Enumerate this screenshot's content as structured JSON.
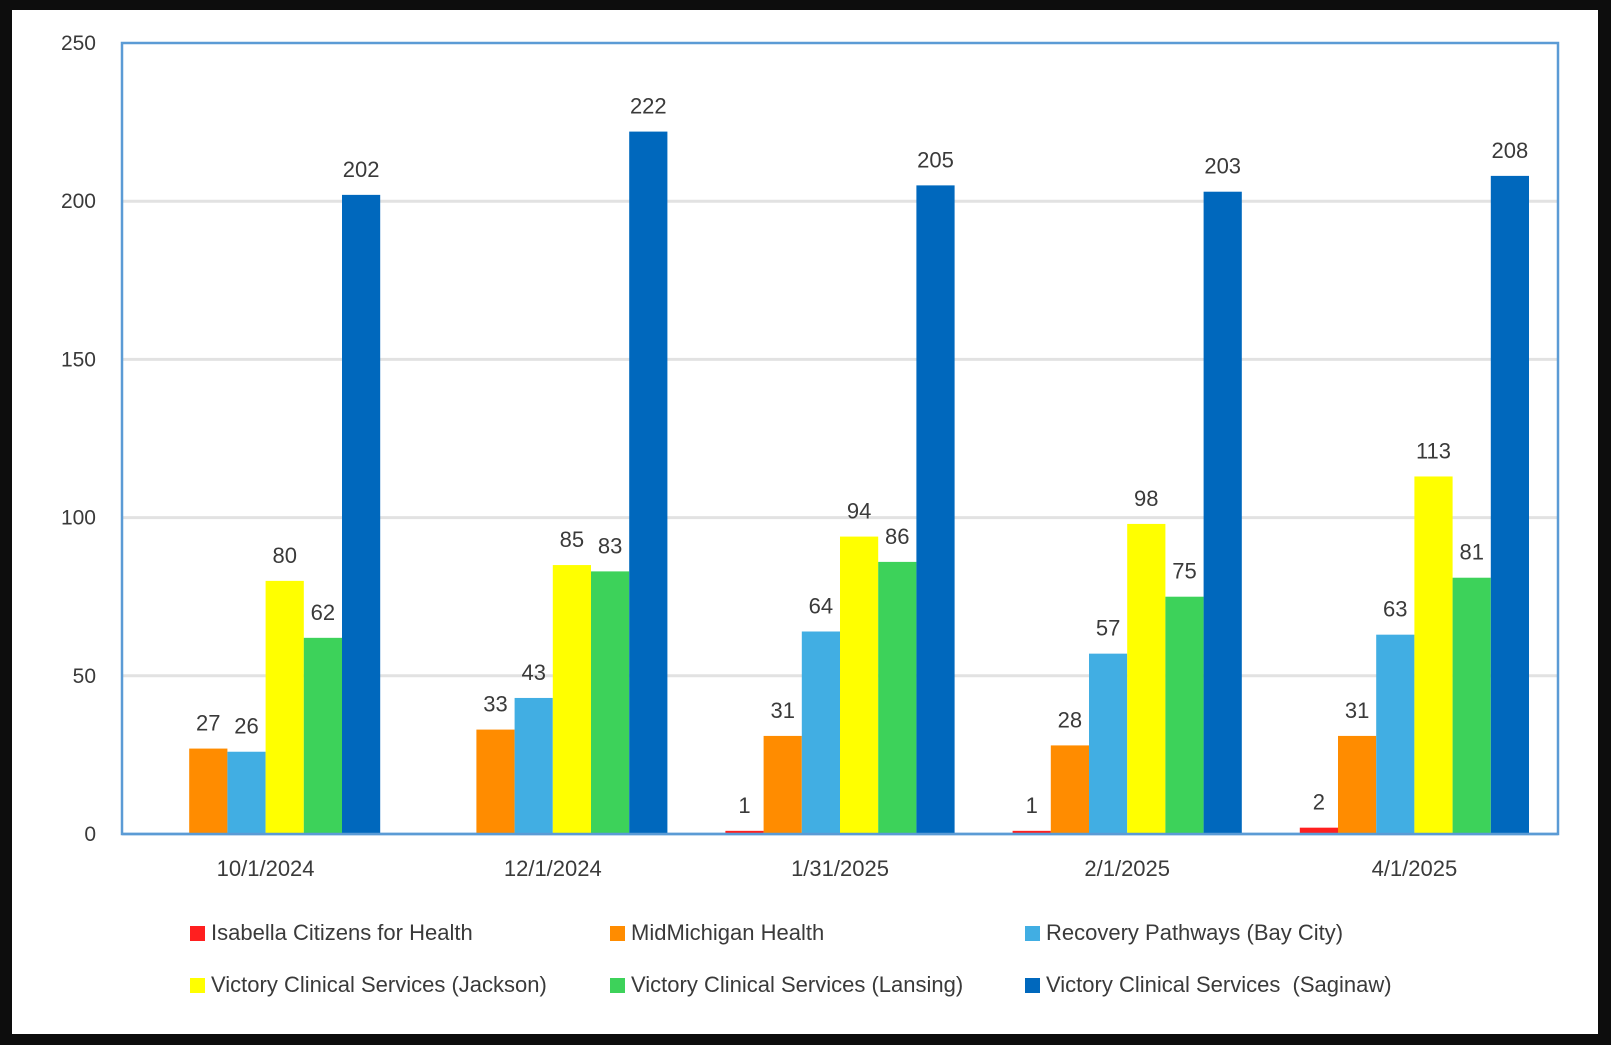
{
  "chart_data": {
    "type": "bar",
    "title": "",
    "xlabel": "",
    "ylabel": "",
    "ylim": [
      0,
      250
    ],
    "yticks": [
      0,
      50,
      100,
      150,
      200,
      250
    ],
    "grid": "horizontal",
    "legend_position": "bottom",
    "categories": [
      "10/1/2024",
      "12/1/2024",
      "1/31/2025",
      "2/1/2025",
      "4/1/2025"
    ],
    "series": [
      {
        "name": "Isabella Citizens for Health",
        "color": "#ff1f1f",
        "values": [
          null,
          null,
          1,
          1,
          2
        ]
      },
      {
        "name": "MidMichigan Health",
        "color": "#ff8c00",
        "values": [
          27,
          33,
          31,
          28,
          31
        ]
      },
      {
        "name": "Recovery Pathways (Bay City)",
        "color": "#41aee3",
        "values": [
          26,
          43,
          64,
          57,
          63
        ]
      },
      {
        "name": "Victory Clinical Services (Jackson)",
        "color": "#ffff00",
        "values": [
          80,
          85,
          94,
          98,
          113
        ]
      },
      {
        "name": "Victory Clinical Services (Lansing)",
        "color": "#3dd25a",
        "values": [
          62,
          83,
          86,
          75,
          81
        ]
      },
      {
        "name": "Victory Clinical Services  (Saginaw)",
        "color": "#0068bd",
        "values": [
          202,
          222,
          205,
          203,
          208
        ]
      }
    ]
  }
}
